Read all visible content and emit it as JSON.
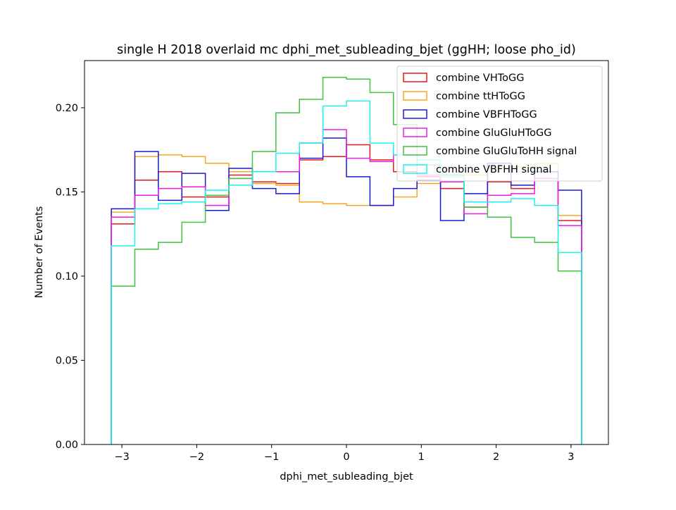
{
  "chart_data": {
    "type": "step-histogram",
    "title": "single H 2018 overlaid mc dphi_met_subleading_bjet (ggHH; loose pho_id)",
    "xlabel": "dphi_met_subleading_bjet",
    "ylabel": "Number of Events",
    "xlim": [
      -3.5,
      3.5
    ],
    "ylim": [
      0,
      0.228
    ],
    "xticks": [
      -3,
      -2,
      -1,
      0,
      1,
      2,
      3
    ],
    "xtick_labels": [
      "−3",
      "−2",
      "−1",
      "0",
      "1",
      "2",
      "3"
    ],
    "yticks": [
      0,
      0.05,
      0.1,
      0.15,
      0.2
    ],
    "ytick_labels": [
      "0.00",
      "0.05",
      "0.10",
      "0.15",
      "0.20"
    ],
    "grid": false,
    "legend_position": "top-right",
    "bin_edges": [
      -3.1416,
      -2.8274,
      -2.5133,
      -2.1991,
      -1.885,
      -1.5708,
      -1.2566,
      -0.9425,
      -0.6283,
      -0.3142,
      0,
      0.3142,
      0.6283,
      0.9425,
      1.2566,
      1.5708,
      1.885,
      2.1991,
      2.5133,
      2.8274,
      3.1416
    ],
    "series": [
      {
        "name": "combine VHToGG",
        "color": "#e41a1c",
        "values": [
          0.131,
          0.157,
          0.162,
          0.147,
          0.147,
          0.16,
          0.156,
          0.155,
          0.169,
          0.171,
          0.178,
          0.169,
          0.162,
          0.159,
          0.152,
          0.141,
          0.156,
          0.152,
          0.162,
          0.133
        ]
      },
      {
        "name": "combine ttHToGG",
        "color": "#f5a623",
        "values": [
          0.138,
          0.171,
          0.172,
          0.171,
          0.167,
          0.162,
          0.155,
          0.154,
          0.144,
          0.143,
          0.142,
          0.142,
          0.147,
          0.155,
          0.16,
          0.16,
          0.164,
          0.165,
          0.167,
          0.136
        ]
      },
      {
        "name": "combine VBFHToGG",
        "color": "#1a1ad6",
        "values": [
          0.14,
          0.174,
          0.145,
          0.161,
          0.139,
          0.164,
          0.152,
          0.149,
          0.17,
          0.182,
          0.159,
          0.142,
          0.152,
          0.157,
          0.133,
          0.149,
          0.167,
          0.154,
          0.162,
          0.151
        ]
      },
      {
        "name": "combine GluGluHToGG",
        "color": "#e81ee8",
        "values": [
          0.135,
          0.148,
          0.152,
          0.153,
          0.142,
          0.158,
          0.162,
          0.162,
          0.179,
          0.187,
          0.17,
          0.168,
          0.172,
          0.16,
          0.156,
          0.137,
          0.148,
          0.149,
          0.158,
          0.13
        ]
      },
      {
        "name": "combine GluGluToHH signal",
        "color": "#3ec43e",
        "values": [
          0.094,
          0.116,
          0.12,
          0.132,
          0.148,
          0.158,
          0.174,
          0.197,
          0.205,
          0.218,
          0.217,
          0.209,
          0.19,
          0.166,
          0.16,
          0.141,
          0.135,
          0.123,
          0.12,
          0.103
        ]
      },
      {
        "name": "combine VBFHH signal",
        "color": "#1ef0f0",
        "values": [
          0.118,
          0.14,
          0.143,
          0.144,
          0.151,
          0.154,
          0.162,
          0.173,
          0.179,
          0.201,
          0.204,
          0.179,
          0.172,
          0.169,
          0.159,
          0.144,
          0.144,
          0.146,
          0.142,
          0.114
        ]
      }
    ]
  }
}
